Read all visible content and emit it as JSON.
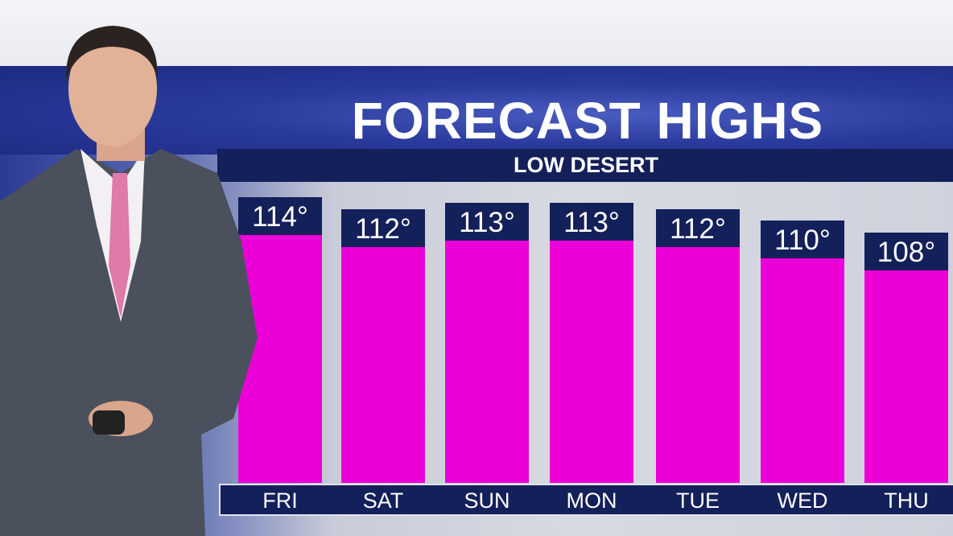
{
  "chart_data": {
    "type": "bar",
    "title": "FORECAST HIGHS",
    "subtitle": "LOW DESERT",
    "categories": [
      "FRI",
      "SAT",
      "SUN",
      "MON",
      "TUE",
      "WED",
      "THU"
    ],
    "values": [
      114,
      112,
      113,
      113,
      112,
      110,
      108
    ],
    "value_labels": [
      "114°",
      "112°",
      "113°",
      "113°",
      "112°",
      "110°",
      "108°"
    ],
    "grid": false,
    "colors": {
      "bar": "#ec00d8",
      "label_box": "#14205a",
      "text": "#ffffff"
    }
  }
}
